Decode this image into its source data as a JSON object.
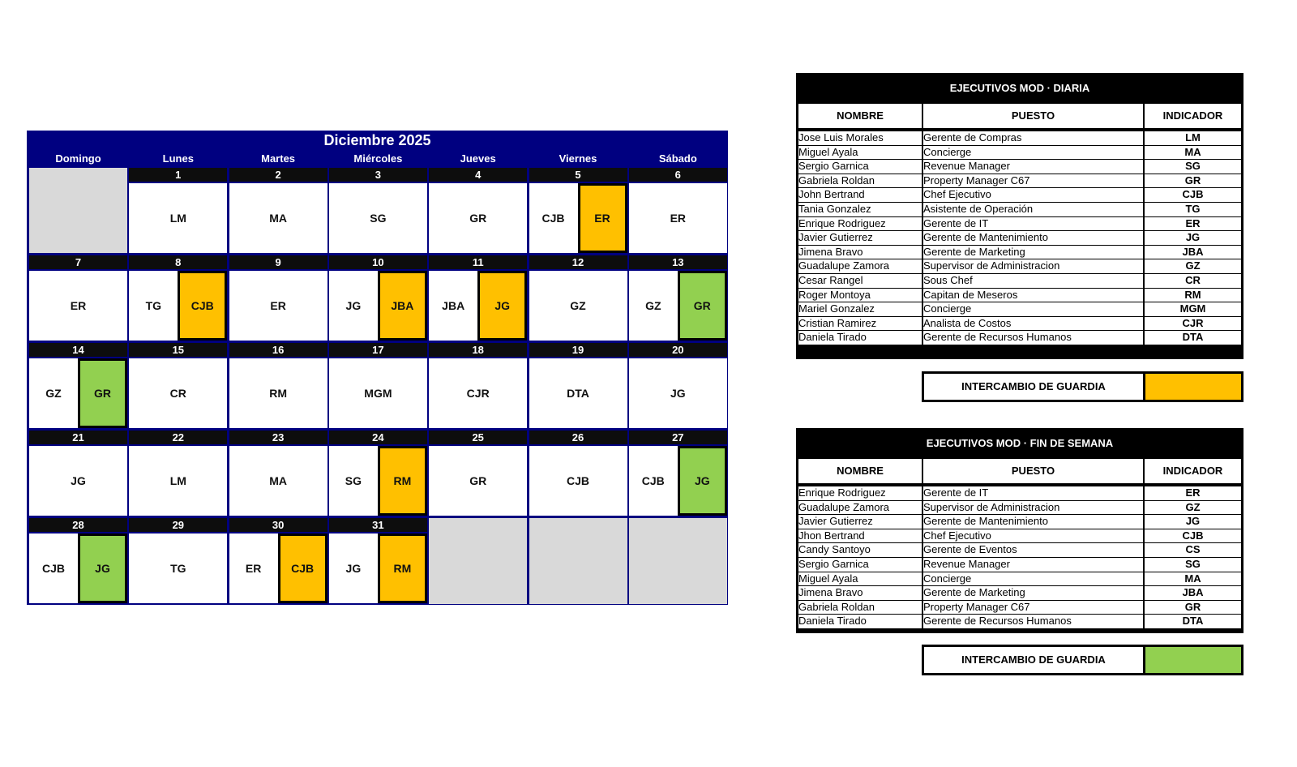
{
  "calendar": {
    "title": "Diciembre 2025",
    "days": [
      "Domingo",
      "Lunes",
      "Martes",
      "Miércoles",
      "Jueves",
      "Viernes",
      "Sábado"
    ],
    "colors": {
      "swap_daily": "#FFC000",
      "swap_weekend": "#92D050"
    },
    "weeks": [
      [
        null,
        {
          "day": "1",
          "a": "LM"
        },
        {
          "day": "2",
          "a": "MA"
        },
        {
          "day": "3",
          "a": "SG"
        },
        {
          "day": "4",
          "a": "GR"
        },
        {
          "day": "5",
          "a": "CJB",
          "b": "ER",
          "c": "swap_daily"
        },
        {
          "day": "6",
          "a": "ER"
        }
      ],
      [
        {
          "day": "7",
          "a": "ER"
        },
        {
          "day": "8",
          "a": "TG",
          "b": "CJB",
          "c": "swap_daily"
        },
        {
          "day": "9",
          "a": "ER"
        },
        {
          "day": "10",
          "a": "JG",
          "b": "JBA",
          "c": "swap_daily"
        },
        {
          "day": "11",
          "a": "JBA",
          "b": "JG",
          "c": "swap_daily"
        },
        {
          "day": "12",
          "a": "GZ"
        },
        {
          "day": "13",
          "a": "GZ",
          "b": "GR",
          "c": "swap_weekend"
        }
      ],
      [
        {
          "day": "14",
          "a": "GZ",
          "b": "GR",
          "c": "swap_weekend"
        },
        {
          "day": "15",
          "a": "CR"
        },
        {
          "day": "16",
          "a": "RM"
        },
        {
          "day": "17",
          "a": "MGM"
        },
        {
          "day": "18",
          "a": "CJR"
        },
        {
          "day": "19",
          "a": "DTA"
        },
        {
          "day": "20",
          "a": "JG"
        }
      ],
      [
        {
          "day": "21",
          "a": "JG"
        },
        {
          "day": "22",
          "a": "LM"
        },
        {
          "day": "23",
          "a": "MA"
        },
        {
          "day": "24",
          "a": "SG",
          "b": "RM",
          "c": "swap_daily"
        },
        {
          "day": "25",
          "a": "GR"
        },
        {
          "day": "26",
          "a": "CJB"
        },
        {
          "day": "27",
          "a": "CJB",
          "b": "JG",
          "c": "swap_weekend"
        }
      ],
      [
        {
          "day": "28",
          "a": "CJB",
          "b": "JG",
          "c": "swap_weekend"
        },
        {
          "day": "29",
          "a": "TG"
        },
        {
          "day": "30",
          "a": "ER",
          "b": "CJB",
          "c": "swap_daily"
        },
        {
          "day": "31",
          "a": "JG",
          "b": "RM",
          "c": "swap_daily"
        },
        null,
        null,
        null
      ]
    ]
  },
  "daily": {
    "title": "EJECUTIVOS MOD · DIARIA",
    "headers": [
      "NOMBRE",
      "PUESTO",
      "INDICADOR"
    ],
    "rows": [
      [
        "Jose Luis Morales",
        "Gerente de Compras",
        "LM"
      ],
      [
        "Miguel Ayala",
        "Concierge",
        "MA"
      ],
      [
        "Sergio Garnica",
        "Revenue Manager",
        "SG"
      ],
      [
        "Gabriela Roldan",
        "Property Manager C67",
        "GR"
      ],
      [
        "John Bertrand",
        "Chef Ejecutivo",
        "CJB"
      ],
      [
        "Tania Gonzalez",
        "Asistente de Operación",
        "TG"
      ],
      [
        "Enrique Rodriguez",
        "Gerente de IT",
        "ER"
      ],
      [
        "Javier Gutierrez",
        "Gerente de Mantenimiento",
        "JG"
      ],
      [
        "Jimena Bravo",
        "Gerente de Marketing",
        "JBA"
      ],
      [
        "Guadalupe Zamora",
        "Supervisor de Administracion",
        "GZ"
      ],
      [
        "Cesar Rangel",
        "Sous Chef",
        "CR"
      ],
      [
        "Roger Montoya",
        "Capitan de Meseros",
        "RM"
      ],
      [
        "Mariel Gonzalez",
        "Concierge",
        "MGM"
      ],
      [
        "Cristian Ramirez",
        "Analista de Costos",
        "CJR"
      ],
      [
        "Daniela Tirado",
        "Gerente de Recursos Humanos",
        "DTA"
      ]
    ],
    "swap_label": "INTERCAMBIO DE GUARDIA"
  },
  "weekend": {
    "title": "EJECUTIVOS MOD · FIN DE SEMANA",
    "headers": [
      "NOMBRE",
      "PUESTO",
      "INDICADOR"
    ],
    "rows": [
      [
        "Enrique Rodriguez",
        "Gerente de IT",
        "ER"
      ],
      [
        "Guadalupe Zamora",
        "Supervisor de Administracion",
        "GZ"
      ],
      [
        "Javier Gutierrez",
        "Gerente de Mantenimiento",
        "JG"
      ],
      [
        "Jhon Bertrand",
        "Chef Ejecutivo",
        "CJB"
      ],
      [
        "Candy Santoyo",
        "Gerente de Eventos",
        "CS"
      ],
      [
        "Sergio Garnica",
        "Revenue Manager",
        "SG"
      ],
      [
        "Miguel Ayala",
        "Concierge",
        "MA"
      ],
      [
        "Jimena Bravo",
        "Gerente de Marketing",
        "JBA"
      ],
      [
        "Gabriela Roldan",
        "Property Manager C67",
        "GR"
      ],
      [
        "Daniela Tirado",
        "Gerente de Recursos Humanos",
        "DTA"
      ]
    ],
    "swap_label": "INTERCAMBIO DE GUARDIA"
  }
}
